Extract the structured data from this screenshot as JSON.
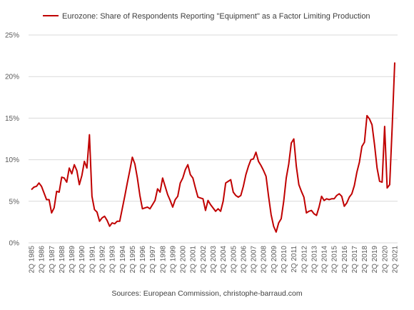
{
  "chart_data": {
    "type": "line",
    "title": "",
    "xlabel": "",
    "ylabel": "",
    "ylim": [
      0,
      25
    ],
    "y_ticks": [
      "0%",
      "5%",
      "10%",
      "15%",
      "20%",
      "25%"
    ],
    "x_tick_labels": [
      "2Q 1985",
      "2Q 1986",
      "2Q 1987",
      "2Q 1988",
      "2Q 1989",
      "2Q 1990",
      "2Q 1991",
      "2Q 1992",
      "2Q 1993",
      "2Q 1994",
      "2Q 1995",
      "2Q 1996",
      "2Q 1997",
      "2Q 1998",
      "2Q 1999",
      "2Q 2000",
      "2Q 2001",
      "2Q 2002",
      "2Q 2003",
      "2Q 2004",
      "2Q 2005",
      "2Q 2006",
      "2Q 2007",
      "2Q 2008",
      "2Q 2009",
      "2Q 2010",
      "2Q 2011",
      "2Q 2012",
      "2Q 2013",
      "2Q 2014",
      "2Q 2015",
      "2Q 2016",
      "2Q 2017",
      "2Q 2018",
      "2Q 2019",
      "2Q 2020",
      "2Q 2021"
    ],
    "grid": "horizontal",
    "legend_position": "top",
    "series": [
      {
        "name": "Eurozone: Share of Respondents Reporting \"Equipment\" as a Factor Limiting Production",
        "color": "#C00000",
        "x": [
          "2Q 1985",
          "3Q 1985",
          "4Q 1985",
          "1Q 1986",
          "2Q 1986",
          "3Q 1986",
          "4Q 1986",
          "1Q 1987",
          "2Q 1987",
          "3Q 1987",
          "4Q 1987",
          "1Q 1988",
          "2Q 1988",
          "3Q 1988",
          "4Q 1988",
          "1Q 1989",
          "2Q 1989",
          "3Q 1989",
          "4Q 1989",
          "1Q 1990",
          "2Q 1990",
          "3Q 1990",
          "4Q 1990",
          "1Q 1991",
          "2Q 1991",
          "3Q 1991",
          "4Q 1991",
          "1Q 1992",
          "2Q 1992",
          "3Q 1992",
          "4Q 1992",
          "1Q 1993",
          "2Q 1993",
          "3Q 1993",
          "4Q 1993",
          "1Q 1994",
          "2Q 1994",
          "3Q 1994",
          "4Q 1994",
          "1Q 1995",
          "2Q 1995",
          "3Q 1995",
          "4Q 1995",
          "1Q 1996",
          "2Q 1996",
          "3Q 1996",
          "4Q 1996",
          "1Q 1997",
          "2Q 1997",
          "3Q 1997",
          "4Q 1997",
          "1Q 1998",
          "2Q 1998",
          "3Q 1998",
          "4Q 1998",
          "1Q 1999",
          "2Q 1999",
          "3Q 1999",
          "4Q 1999",
          "1Q 2000",
          "2Q 2000",
          "3Q 2000",
          "4Q 2000",
          "1Q 2001",
          "2Q 2001",
          "3Q 2001",
          "4Q 2001",
          "1Q 2002",
          "2Q 2002",
          "3Q 2002",
          "4Q 2002",
          "1Q 2003",
          "2Q 2003",
          "3Q 2003",
          "4Q 2003",
          "1Q 2004",
          "2Q 2004",
          "3Q 2004",
          "4Q 2004",
          "1Q 2005",
          "2Q 2005",
          "3Q 2005",
          "4Q 2005",
          "1Q 2006",
          "2Q 2006",
          "3Q 2006",
          "4Q 2006",
          "1Q 2007",
          "2Q 2007",
          "3Q 2007",
          "4Q 2007",
          "1Q 2008",
          "2Q 2008",
          "3Q 2008",
          "4Q 2008",
          "1Q 2009",
          "2Q 2009",
          "3Q 2009",
          "4Q 2009",
          "1Q 2010",
          "2Q 2010",
          "3Q 2010",
          "4Q 2010",
          "1Q 2011",
          "2Q 2011",
          "3Q 2011",
          "4Q 2011",
          "1Q 2012",
          "2Q 2012",
          "3Q 2012",
          "4Q 2012",
          "1Q 2013",
          "2Q 2013",
          "3Q 2013",
          "4Q 2013",
          "1Q 2014",
          "2Q 2014",
          "3Q 2014",
          "4Q 2014",
          "1Q 2015",
          "2Q 2015",
          "3Q 2015",
          "4Q 2015",
          "1Q 2016",
          "2Q 2016",
          "3Q 2016",
          "4Q 2016",
          "1Q 2017",
          "2Q 2017",
          "3Q 2017",
          "4Q 2017",
          "1Q 2018",
          "2Q 2018",
          "3Q 2018",
          "4Q 2018",
          "1Q 2019",
          "2Q 2019",
          "3Q 2019",
          "4Q 2019",
          "1Q 2020",
          "2Q 2020",
          "3Q 2020",
          "4Q 2020",
          "1Q 2021",
          "2Q 2021"
        ],
        "values": [
          6.4,
          6.7,
          6.8,
          7.2,
          6.8,
          6.0,
          5.2,
          5.2,
          3.6,
          4.2,
          6.2,
          6.1,
          7.9,
          7.8,
          7.3,
          9.0,
          8.3,
          9.4,
          8.7,
          7.0,
          8.1,
          9.8,
          9.0,
          13.0,
          5.6,
          4.0,
          3.7,
          2.6,
          3.0,
          3.2,
          2.7,
          2.0,
          2.4,
          2.3,
          2.6,
          2.6,
          4.1,
          5.6,
          7.2,
          8.7,
          10.3,
          9.5,
          7.8,
          5.7,
          4.1,
          4.2,
          4.3,
          4.1,
          4.6,
          5.1,
          6.5,
          6.1,
          7.8,
          6.8,
          5.8,
          5.1,
          4.3,
          5.2,
          5.6,
          7.2,
          7.8,
          8.8,
          9.4,
          8.2,
          7.8,
          6.6,
          5.5,
          5.4,
          5.3,
          3.9,
          5.1,
          4.6,
          4.2,
          3.8,
          4.1,
          3.8,
          5.0,
          7.2,
          7.4,
          7.6,
          6.1,
          5.7,
          5.5,
          5.7,
          6.8,
          8.2,
          9.2,
          10.0,
          10.1,
          10.9,
          9.8,
          9.3,
          8.7,
          8.0,
          5.6,
          3.4,
          2.0,
          1.3,
          2.4,
          2.9,
          5.0,
          7.8,
          9.5,
          12.0,
          12.5,
          9.2,
          7.0,
          6.2,
          5.5,
          3.6,
          3.8,
          3.9,
          3.5,
          3.3,
          4.3,
          5.6,
          5.1,
          5.3,
          5.2,
          5.3,
          5.3,
          5.7,
          5.9,
          5.6,
          4.4,
          4.8,
          5.5,
          5.9,
          6.9,
          8.5,
          9.7,
          11.6,
          12.1,
          15.3,
          14.9,
          14.2,
          11.8,
          9.0,
          7.4,
          7.3,
          14.0,
          6.6,
          7.0,
          14.0,
          21.7
        ]
      }
    ]
  },
  "source_text": "Sources: European Commission, christophe-barraud.com"
}
